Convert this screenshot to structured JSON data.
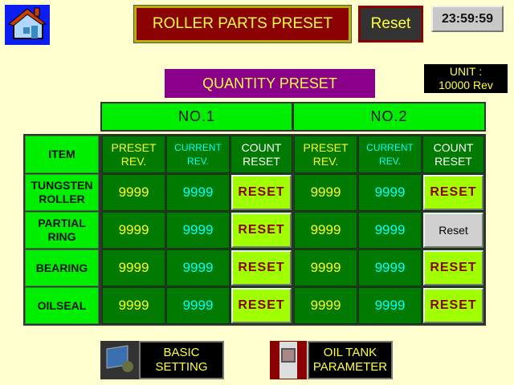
{
  "header": {
    "title": "ROLLER PARTS PRESET",
    "reset_label": "Reset",
    "clock": "23:59:59"
  },
  "section_title": "QUANTITY PRESET",
  "unit": {
    "line1": "UNIT :",
    "line2": "10000 Rev"
  },
  "groups": [
    "NO.1",
    "NO.2"
  ],
  "columns": {
    "item": "ITEM",
    "preset": [
      "PRESET",
      "REV."
    ],
    "current": [
      "CURRENT",
      "REV."
    ],
    "count": [
      "COUNT",
      "RESET"
    ]
  },
  "rows": [
    {
      "item": [
        "TUNGSTEN",
        "ROLLER"
      ],
      "no1": {
        "preset": "9999",
        "current": "9999",
        "reset": "RESET"
      },
      "no2": {
        "preset": "9999",
        "current": "9999",
        "reset": "RESET"
      }
    },
    {
      "item": [
        "PARTIAL",
        "RING"
      ],
      "no1": {
        "preset": "9999",
        "current": "9999",
        "reset": "RESET"
      },
      "no2": {
        "preset": "9999",
        "current": "9999",
        "reset": "Reset"
      }
    },
    {
      "item": [
        "BEARING",
        ""
      ],
      "no1": {
        "preset": "9999",
        "current": "9999",
        "reset": "RESET"
      },
      "no2": {
        "preset": "9999",
        "current": "9999",
        "reset": "RESET"
      }
    },
    {
      "item": [
        "OILSEAL",
        ""
      ],
      "no1": {
        "preset": "9999",
        "current": "9999",
        "reset": "RESET"
      },
      "no2": {
        "preset": "9999",
        "current": "9999",
        "reset": "RESET"
      }
    }
  ],
  "nav": {
    "basic": [
      "BASIC",
      "SETTING"
    ],
    "oil": [
      "OIL TANK",
      "PARAMETER"
    ]
  }
}
